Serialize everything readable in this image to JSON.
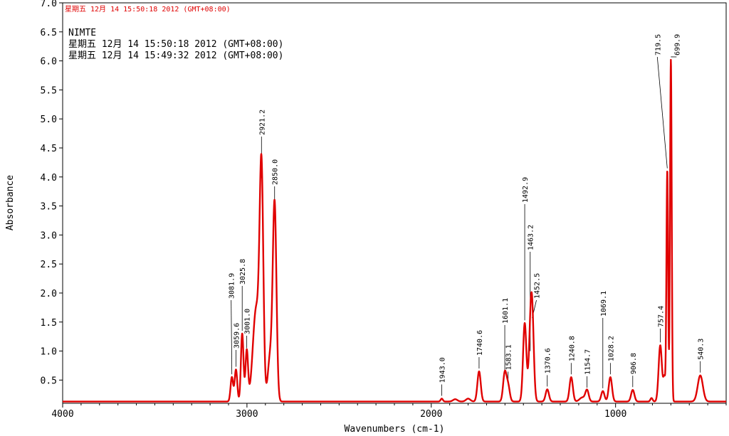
{
  "header": {
    "timestamp": "星期五 12月 14 15:50:18 2012 (GMT+08:00)"
  },
  "info": {
    "title": "NIMTE",
    "line1": "星期五 12月 14 15:50:18 2012 (GMT+08:00)",
    "line2": "星期五 12月 14 15:49:32 2012 (GMT+08:00)"
  },
  "colors": {
    "spectrum": "#e00000",
    "axis": "#000000",
    "header_text": "#e00000"
  },
  "chart_data": {
    "type": "line",
    "xlabel": "Wavenumbers (cm-1)",
    "ylabel": "Absorbance",
    "xlim": [
      4000,
      400
    ],
    "ylim": [
      0.1,
      7.0
    ],
    "x_reversed": true,
    "grid": false,
    "x_ticks": [
      4000,
      3000,
      2000,
      1000
    ],
    "x_tick_labels": [
      "4000",
      "3000",
      "2000",
      "1000"
    ],
    "y_ticks": [
      0.5,
      1.0,
      1.5,
      2.0,
      2.5,
      3.0,
      3.5,
      4.0,
      4.5,
      5.0,
      5.5,
      6.0,
      6.5,
      7.0
    ],
    "y_tick_labels": [
      "0.5",
      "1.0",
      "1.5",
      "2.0",
      "2.5",
      "3.0",
      "3.5",
      "4.0",
      "4.5",
      "5.0",
      "5.5",
      "6.0",
      "6.5",
      "7.0"
    ],
    "baseline": 0.13,
    "peaks": [
      {
        "x": 3081.9,
        "label": "3081.9",
        "y": 0.55
      },
      {
        "x": 3059.6,
        "label": "3059.6",
        "y": 0.68
      },
      {
        "x": 3025.8,
        "label": "3025.8",
        "y": 1.3
      },
      {
        "x": 3001.0,
        "label": "3001.0",
        "y": 1.0
      },
      {
        "x": 2921.2,
        "label": "2921.2",
        "y": 3.93
      },
      {
        "x": 2850.0,
        "label": "2850.0",
        "y": 3.52
      },
      {
        "x": 1943.0,
        "label": "1943.0",
        "y": 0.18
      },
      {
        "x": 1740.6,
        "label": "1740.6",
        "y": 0.65
      },
      {
        "x": 1601.1,
        "label": "1601.1",
        "y": 0.62
      },
      {
        "x": 1583.1,
        "label": "1583.1",
        "y": 0.4
      },
      {
        "x": 1492.9,
        "label": "1492.9",
        "y": 1.48
      },
      {
        "x": 1463.2,
        "label": "1463.2",
        "y": 0.95
      },
      {
        "x": 1452.5,
        "label": "1452.5",
        "y": 1.52
      },
      {
        "x": 1370.6,
        "label": "1370.6",
        "y": 0.34
      },
      {
        "x": 1240.8,
        "label": "1240.8",
        "y": 0.55
      },
      {
        "x": 1154.7,
        "label": "1154.7",
        "y": 0.32
      },
      {
        "x": 1069.1,
        "label": "1069.1",
        "y": 0.31
      },
      {
        "x": 1028.2,
        "label": "1028.2",
        "y": 0.55
      },
      {
        "x": 906.8,
        "label": "906.8",
        "y": 0.33
      },
      {
        "x": 757.4,
        "label": "757.4",
        "y": 1.1
      },
      {
        "x": 719.5,
        "label": "719.5",
        "y": 4.1
      },
      {
        "x": 699.9,
        "label": "699.9",
        "y": 6.02
      },
      {
        "x": 540.3,
        "label": "540.3",
        "y": 0.58
      }
    ]
  }
}
